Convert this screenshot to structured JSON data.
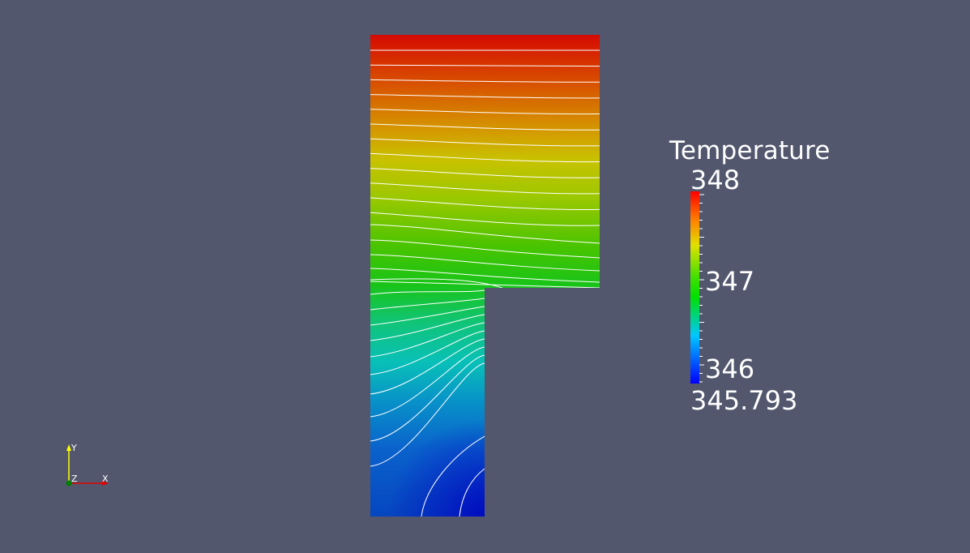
{
  "legend": {
    "title": "Temperature",
    "max_label": "348",
    "labels": [
      "347",
      "346"
    ],
    "min_label": "345.793",
    "range": [
      345.793,
      348
    ],
    "colormap": [
      "#0000ff",
      "#00ffff",
      "#00ff00",
      "#ffff00",
      "#ff0000"
    ]
  },
  "axes_triad": {
    "x_label": "X",
    "y_label": "Y",
    "z_label": "Z",
    "x_color": "#ff0000",
    "y_color": "#ffff00",
    "z_color": "#00a000"
  },
  "colors": {
    "background": "#52576e",
    "contour_lines": "#ffffff"
  }
}
